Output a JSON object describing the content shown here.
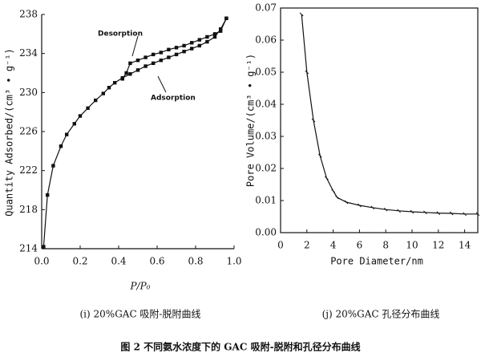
{
  "chart_data": [
    {
      "type": "line",
      "caption": "(i) 20%GAC 吸附-脱附曲线",
      "x_label": "P/P₀",
      "y_label": "Quantity Adsorbed/(cm³ • g⁻¹)",
      "annotations": [
        "Desorption",
        "Adsorption"
      ],
      "xlim": [
        0,
        1.0
      ],
      "ylim": [
        214,
        238
      ],
      "xticks": [
        {
          "value": 0,
          "label": "0.0"
        },
        0.2,
        0.4,
        0.6,
        0.8,
        {
          "value": 1.0,
          "label": "1.0"
        }
      ],
      "yticks": [
        214,
        218,
        222,
        226,
        230,
        234,
        238
      ],
      "box": false,
      "series": [
        {
          "name": "Adsorption",
          "color": "#111111",
          "x": [
            0.01,
            0.03,
            0.06,
            0.1,
            0.13,
            0.17,
            0.2,
            0.24,
            0.28,
            0.32,
            0.35,
            0.38,
            0.42,
            0.46,
            0.5,
            0.54,
            0.58,
            0.62,
            0.66,
            0.7,
            0.74,
            0.78,
            0.82,
            0.86,
            0.9,
            0.93,
            0.96
          ],
          "values": [
            214.2,
            219.5,
            222.5,
            224.5,
            225.7,
            226.8,
            227.6,
            228.4,
            229.2,
            229.9,
            230.5,
            231.0,
            231.5,
            231.9,
            232.3,
            232.7,
            233.0,
            233.3,
            233.6,
            233.9,
            234.2,
            234.5,
            234.8,
            235.2,
            235.7,
            236.5,
            237.6
          ]
        },
        {
          "name": "Desorption",
          "color": "#111111",
          "x": [
            0.42,
            0.44,
            0.46,
            0.5,
            0.54,
            0.58,
            0.62,
            0.66,
            0.7,
            0.74,
            0.78,
            0.82,
            0.86,
            0.9,
            0.93,
            0.96
          ],
          "values": [
            231.4,
            232.0,
            233.0,
            233.3,
            233.6,
            233.9,
            234.1,
            234.4,
            234.6,
            234.8,
            235.1,
            235.4,
            235.7,
            236.0,
            236.3,
            237.6
          ]
        }
      ]
    },
    {
      "type": "line",
      "caption": "(j) 20%GAC 孔径分布曲线",
      "x_label": "Pore Diameter/nm",
      "y_label": "Pore Volume/(cm³ • g⁻¹)",
      "xlim": [
        0,
        15
      ],
      "ylim": [
        0,
        0.07
      ],
      "xticks": [
        0,
        2,
        4,
        6,
        8,
        10,
        12,
        14
      ],
      "yticks": [
        {
          "value": 0,
          "label": "0.00"
        },
        0.01,
        0.02,
        0.03,
        0.04,
        0.05,
        0.06,
        0.07
      ],
      "box": true,
      "series": [
        {
          "name": "Pore Volume",
          "color": "#111111",
          "x": [
            1.6,
            2,
            2.5,
            3,
            3.5,
            4,
            4.3,
            5,
            6,
            7,
            8,
            9,
            10,
            11,
            12,
            13,
            14,
            15
          ],
          "values": [
            0.068,
            0.05,
            0.035,
            0.024,
            0.017,
            0.013,
            0.011,
            0.0095,
            0.0085,
            0.0078,
            0.0072,
            0.0068,
            0.0065,
            0.0063,
            0.0061,
            0.006,
            0.0058,
            0.0058
          ]
        }
      ]
    }
  ],
  "figure_caption": "图 2 不同氨水浓度下的 GAC 吸附-脱附和孔径分布曲线"
}
